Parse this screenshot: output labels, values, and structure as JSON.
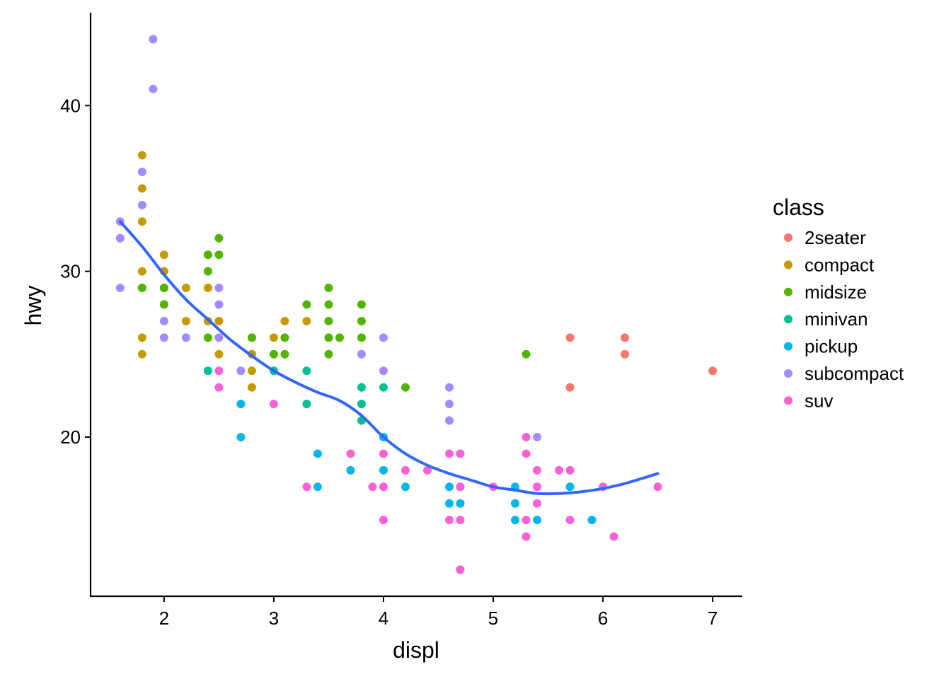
{
  "chart_data": {
    "type": "scatter",
    "xlabel": "displ",
    "ylabel": "hwy",
    "xlim": [
      1.33,
      7.27
    ],
    "ylim": [
      10.4,
      45.6
    ],
    "x_ticks": [
      2,
      3,
      4,
      5,
      6,
      7
    ],
    "y_ticks": [
      20,
      30,
      40
    ],
    "grid": false,
    "legend": {
      "title": "class",
      "position": "right",
      "entries": [
        {
          "name": "2seater",
          "color": "#F8766D"
        },
        {
          "name": "compact",
          "color": "#C49A00"
        },
        {
          "name": "midsize",
          "color": "#53B400"
        },
        {
          "name": "minivan",
          "color": "#00C094"
        },
        {
          "name": "pickup",
          "color": "#00B6EB"
        },
        {
          "name": "subcompact",
          "color": "#A58AFF"
        },
        {
          "name": "suv",
          "color": "#FB61D7"
        }
      ]
    },
    "series": [
      {
        "name": "2seater",
        "color": "#F8766D",
        "points": [
          [
            5.7,
            26
          ],
          [
            5.7,
            23
          ],
          [
            6.2,
            26
          ],
          [
            6.2,
            25
          ],
          [
            7.0,
            24
          ]
        ]
      },
      {
        "name": "compact",
        "color": "#C49A00",
        "points": [
          [
            1.8,
            37
          ],
          [
            1.8,
            35
          ],
          [
            1.8,
            33
          ],
          [
            1.8,
            30
          ],
          [
            1.8,
            29
          ],
          [
            1.8,
            26
          ],
          [
            1.8,
            25
          ],
          [
            2.0,
            31
          ],
          [
            2.0,
            30
          ],
          [
            2.0,
            29
          ],
          [
            2.2,
            29
          ],
          [
            2.2,
            27
          ],
          [
            2.4,
            31
          ],
          [
            2.4,
            29
          ],
          [
            2.4,
            27
          ],
          [
            2.5,
            27
          ],
          [
            2.5,
            25
          ],
          [
            2.8,
            26
          ],
          [
            2.8,
            25
          ],
          [
            2.8,
            24
          ],
          [
            2.8,
            23
          ],
          [
            3.0,
            26
          ],
          [
            3.1,
            27
          ],
          [
            3.3,
            27
          ]
        ]
      },
      {
        "name": "midsize",
        "color": "#53B400",
        "points": [
          [
            1.8,
            29
          ],
          [
            2.0,
            29
          ],
          [
            2.0,
            28
          ],
          [
            2.4,
            31
          ],
          [
            2.4,
            30
          ],
          [
            2.4,
            26
          ],
          [
            2.5,
            32
          ],
          [
            2.5,
            31
          ],
          [
            2.8,
            26
          ],
          [
            3.0,
            25
          ],
          [
            3.1,
            26
          ],
          [
            3.1,
            25
          ],
          [
            3.3,
            28
          ],
          [
            3.5,
            29
          ],
          [
            3.5,
            28
          ],
          [
            3.5,
            27
          ],
          [
            3.5,
            26
          ],
          [
            3.5,
            25
          ],
          [
            3.6,
            26
          ],
          [
            3.8,
            28
          ],
          [
            3.8,
            27
          ],
          [
            3.8,
            26
          ],
          [
            4.2,
            23
          ],
          [
            5.3,
            25
          ]
        ]
      },
      {
        "name": "minivan",
        "color": "#00C094",
        "points": [
          [
            2.4,
            24
          ],
          [
            3.0,
            24
          ],
          [
            3.3,
            24
          ],
          [
            3.3,
            22
          ],
          [
            3.8,
            23
          ],
          [
            3.8,
            22
          ],
          [
            3.8,
            21
          ],
          [
            4.0,
            23
          ]
        ]
      },
      {
        "name": "pickup",
        "color": "#00B6EB",
        "points": [
          [
            2.7,
            22
          ],
          [
            2.7,
            20
          ],
          [
            3.4,
            19
          ],
          [
            3.4,
            17
          ],
          [
            3.7,
            18
          ],
          [
            4.0,
            20
          ],
          [
            4.0,
            18
          ],
          [
            4.2,
            17
          ],
          [
            4.6,
            17
          ],
          [
            4.6,
            16
          ],
          [
            4.7,
            17
          ],
          [
            4.7,
            16
          ],
          [
            4.7,
            12
          ],
          [
            5.2,
            17
          ],
          [
            5.2,
            16
          ],
          [
            5.2,
            15
          ],
          [
            5.4,
            15
          ],
          [
            5.7,
            17
          ],
          [
            5.9,
            15
          ]
        ]
      },
      {
        "name": "subcompact",
        "color": "#A58AFF",
        "points": [
          [
            1.6,
            33
          ],
          [
            1.6,
            32
          ],
          [
            1.6,
            29
          ],
          [
            1.8,
            36
          ],
          [
            1.8,
            34
          ],
          [
            1.9,
            44
          ],
          [
            1.9,
            41
          ],
          [
            2.0,
            27
          ],
          [
            2.0,
            26
          ],
          [
            2.2,
            26
          ],
          [
            2.5,
            29
          ],
          [
            2.5,
            28
          ],
          [
            2.5,
            26
          ],
          [
            2.7,
            24
          ],
          [
            3.8,
            25
          ],
          [
            4.0,
            26
          ],
          [
            4.0,
            24
          ],
          [
            4.6,
            23
          ],
          [
            4.6,
            22
          ],
          [
            4.6,
            21
          ],
          [
            5.4,
            20
          ]
        ]
      },
      {
        "name": "suv",
        "color": "#FB61D7",
        "points": [
          [
            2.5,
            24
          ],
          [
            2.5,
            23
          ],
          [
            3.0,
            22
          ],
          [
            3.3,
            17
          ],
          [
            3.7,
            19
          ],
          [
            3.9,
            17
          ],
          [
            4.0,
            19
          ],
          [
            4.0,
            17
          ],
          [
            4.0,
            15
          ],
          [
            4.2,
            18
          ],
          [
            4.4,
            18
          ],
          [
            4.6,
            19
          ],
          [
            4.6,
            15
          ],
          [
            4.7,
            19
          ],
          [
            4.7,
            17
          ],
          [
            4.7,
            15
          ],
          [
            4.7,
            12
          ],
          [
            5.0,
            17
          ],
          [
            5.3,
            20
          ],
          [
            5.3,
            19
          ],
          [
            5.3,
            15
          ],
          [
            5.3,
            14
          ],
          [
            5.4,
            18
          ],
          [
            5.4,
            17
          ],
          [
            5.4,
            16
          ],
          [
            5.6,
            18
          ],
          [
            5.7,
            18
          ],
          [
            5.7,
            15
          ],
          [
            6.0,
            17
          ],
          [
            6.1,
            14
          ],
          [
            6.5,
            17
          ]
        ]
      }
    ],
    "smooth": {
      "color": "#3366FF",
      "points": [
        [
          1.6,
          33.0
        ],
        [
          1.8,
          31.5
        ],
        [
          2.0,
          29.8
        ],
        [
          2.2,
          28.3
        ],
        [
          2.4,
          27.1
        ],
        [
          2.6,
          25.9
        ],
        [
          2.8,
          24.9
        ],
        [
          3.0,
          24.0
        ],
        [
          3.2,
          23.3
        ],
        [
          3.4,
          22.7
        ],
        [
          3.6,
          22.2
        ],
        [
          3.8,
          21.3
        ],
        [
          4.0,
          20.0
        ],
        [
          4.2,
          19.0
        ],
        [
          4.4,
          18.3
        ],
        [
          4.6,
          17.8
        ],
        [
          4.8,
          17.4
        ],
        [
          5.0,
          17.0
        ],
        [
          5.2,
          16.8
        ],
        [
          5.4,
          16.6
        ],
        [
          5.6,
          16.6
        ],
        [
          5.8,
          16.7
        ],
        [
          6.0,
          16.9
        ],
        [
          6.2,
          17.2
        ],
        [
          6.5,
          17.8
        ]
      ]
    }
  }
}
